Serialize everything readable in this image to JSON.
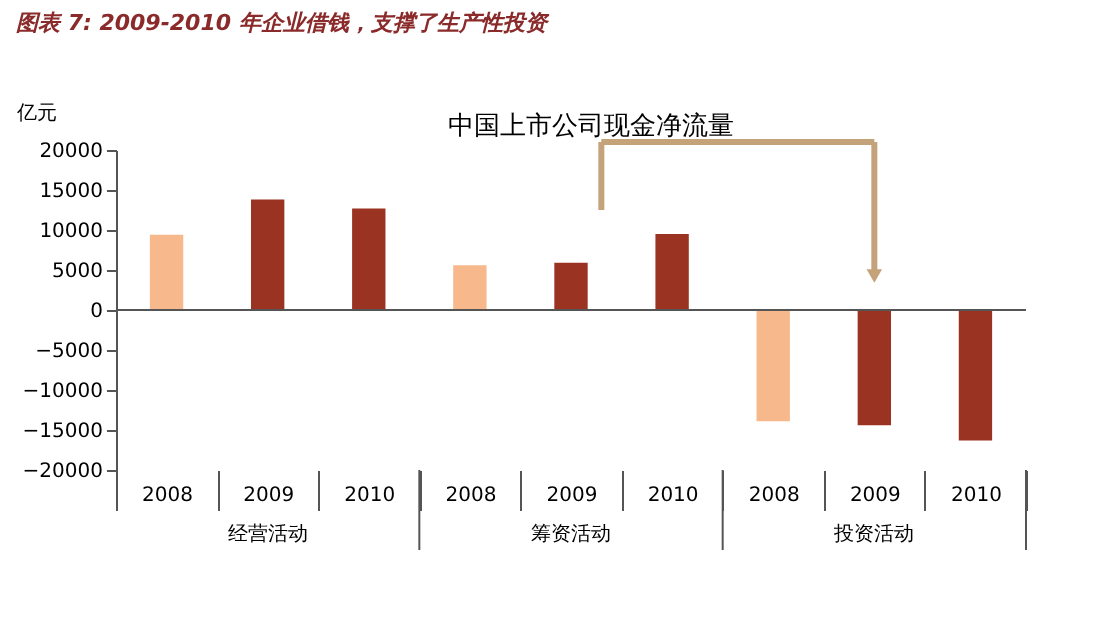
{
  "chart_data": {
    "type": "bar",
    "title": "图表 7: 2009-2010 年企业借钱，支撑了生产性投资",
    "subtitle": "中国上市公司现金净流量",
    "ylabel": "亿元",
    "categories": [
      "2008",
      "2009",
      "2010",
      "2008",
      "2009",
      "2010",
      "2008",
      "2009",
      "2010"
    ],
    "values": [
      9400,
      13800,
      12700,
      5600,
      5900,
      9500,
      -13900,
      -14400,
      -16300
    ],
    "colors": [
      "#f7b98b",
      "#9b3322",
      "#9b3322",
      "#f7b98b",
      "#9b3322",
      "#9b3322",
      "#f7b98b",
      "#9b3322",
      "#9b3322"
    ],
    "ylim": [
      -20000,
      20000
    ],
    "yticks": [
      -20000,
      -15000,
      -10000,
      -5000,
      0,
      5000,
      10000,
      15000,
      20000
    ],
    "annotations": [
      "经营活动",
      "筹资活动",
      "投资活动"
    ],
    "ref_lines": [
      {
        "axis": "y",
        "value": 0,
        "color": "#555555"
      }
    ],
    "grid": false
  }
}
